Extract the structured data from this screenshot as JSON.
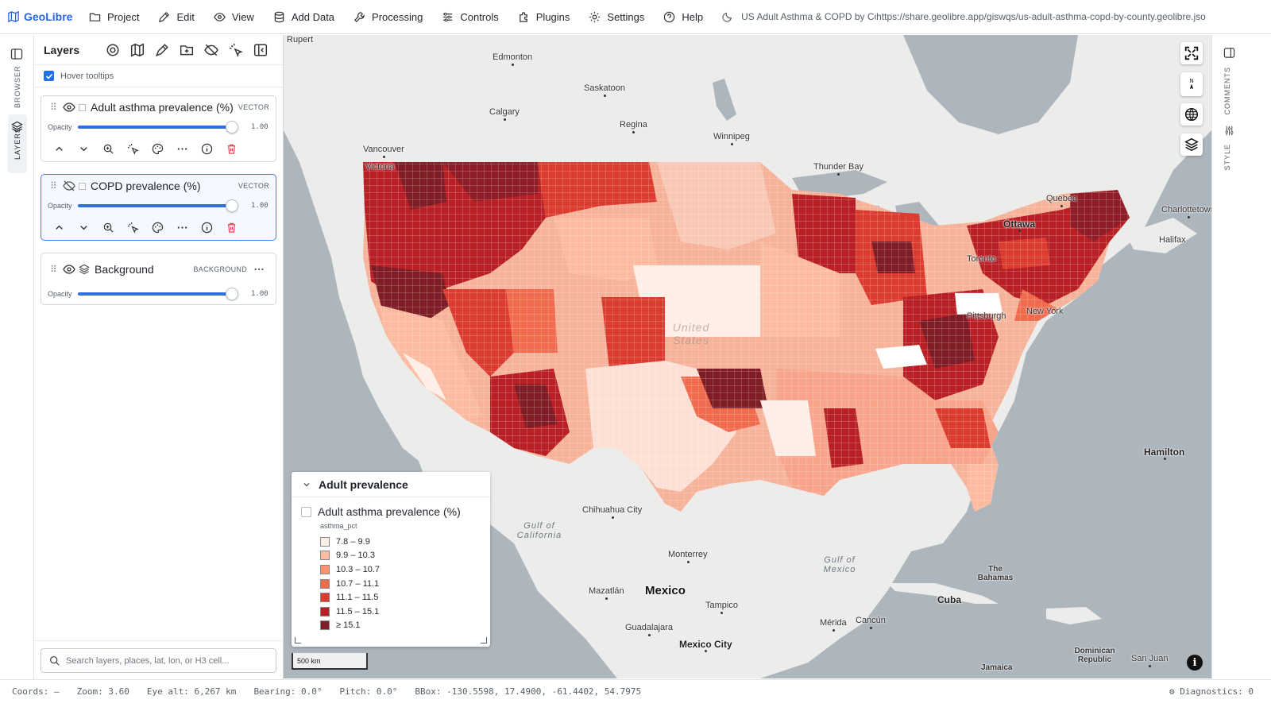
{
  "app": {
    "name": "GeoLibre"
  },
  "menu": [
    {
      "label": "Project",
      "icon": "folder-icon"
    },
    {
      "label": "Edit",
      "icon": "pencil-icon"
    },
    {
      "label": "View",
      "icon": "eye-icon"
    },
    {
      "label": "Add Data",
      "icon": "database-icon"
    },
    {
      "label": "Processing",
      "icon": "wrench-icon"
    },
    {
      "label": "Controls",
      "icon": "sliders-icon"
    },
    {
      "label": "Plugins",
      "icon": "puzzle-icon"
    },
    {
      "label": "Settings",
      "icon": "gear-icon"
    },
    {
      "label": "Help",
      "icon": "help-icon"
    }
  ],
  "topbar": {
    "project_title": "US Adult Asthma & COPD by County",
    "share_url": "https://share.geolibre.app/giswqs/us-adult-asthma-copd-by-county.geolibre.json"
  },
  "left_rail": {
    "browser": "BROWSER",
    "layers": "LAYERS"
  },
  "layers_panel": {
    "title": "Layers",
    "hover_tooltips": {
      "label": "Hover tooltips",
      "checked": true
    },
    "opacity_label": "Opacity",
    "layers": [
      {
        "name": "Adult asthma prevalence (%)",
        "type": "VECTOR",
        "visible": true,
        "opacity": "1.00",
        "selected": false
      },
      {
        "name": "COPD prevalence (%)",
        "type": "VECTOR",
        "visible": false,
        "opacity": "1.00",
        "selected": true
      },
      {
        "name": "Background",
        "type": "BACKGROUND",
        "visible": true,
        "opacity": "1.00",
        "selected": false
      }
    ],
    "search_placeholder": "Search layers, places, lat, lon, or H3 cell..."
  },
  "map": {
    "places": [
      {
        "name": "Rupert"
      },
      {
        "name": "Edmonton"
      },
      {
        "name": "Saskatoon"
      },
      {
        "name": "Calgary"
      },
      {
        "name": "Regina"
      },
      {
        "name": "Winnipeg"
      },
      {
        "name": "Vancouver"
      },
      {
        "name": "Victoria"
      },
      {
        "name": "Thunder Bay"
      },
      {
        "name": "Quebec"
      },
      {
        "name": "Charlottetown"
      },
      {
        "name": "Ottawa"
      },
      {
        "name": "Halifax"
      },
      {
        "name": "Toronto"
      },
      {
        "name": "Pittsburgh"
      },
      {
        "name": "New York"
      },
      {
        "name": "Hamilton"
      },
      {
        "name": "Chihuahua City"
      },
      {
        "name": "Monterrey"
      },
      {
        "name": "Mexico"
      },
      {
        "name": "Mazatlán"
      },
      {
        "name": "Tampico"
      },
      {
        "name": "Guadalajara"
      },
      {
        "name": "Mexico City"
      },
      {
        "name": "Mérida"
      },
      {
        "name": "Cancún"
      },
      {
        "name": "Cuba"
      },
      {
        "name": "The Bahamas"
      },
      {
        "name": "Dominican Republic"
      },
      {
        "name": "San Juan"
      },
      {
        "name": "Jamaica"
      },
      {
        "name": "Gulf of California"
      },
      {
        "name": "Gulf of Mexico"
      },
      {
        "name": "United States"
      }
    ],
    "legend": {
      "title": "Adult prevalence",
      "layer_name": "Adult asthma prevalence (%)",
      "field": "asthma_pct",
      "classes": [
        {
          "label": "7.8 – 9.9",
          "color": "#fdeee8"
        },
        {
          "label": "9.9 – 10.3",
          "color": "#fcbba1"
        },
        {
          "label": "10.3 – 10.7",
          "color": "#fc9272"
        },
        {
          "label": "10.7 – 11.1",
          "color": "#f06a4e"
        },
        {
          "label": "11.1 – 11.5",
          "color": "#dc3b30"
        },
        {
          "label": "11.5 – 15.1",
          "color": "#b92026"
        },
        {
          "label": "≥ 15.1",
          "color": "#7f1d26"
        }
      ]
    },
    "scale": "500 km"
  },
  "right_rail": {
    "comments": "COMMENTS",
    "style": "STYLE"
  },
  "status": {
    "coords": "Coords: —",
    "zoom": "Zoom: 3.60",
    "eye_alt": "Eye alt: 6,267 km",
    "bearing": "Bearing: 0.0°",
    "pitch": "Pitch: 0.0°",
    "bbox": "BBox: -130.5598, 17.4900, -61.4402, 54.7975",
    "diagnostics": "Diagnostics: 0"
  }
}
